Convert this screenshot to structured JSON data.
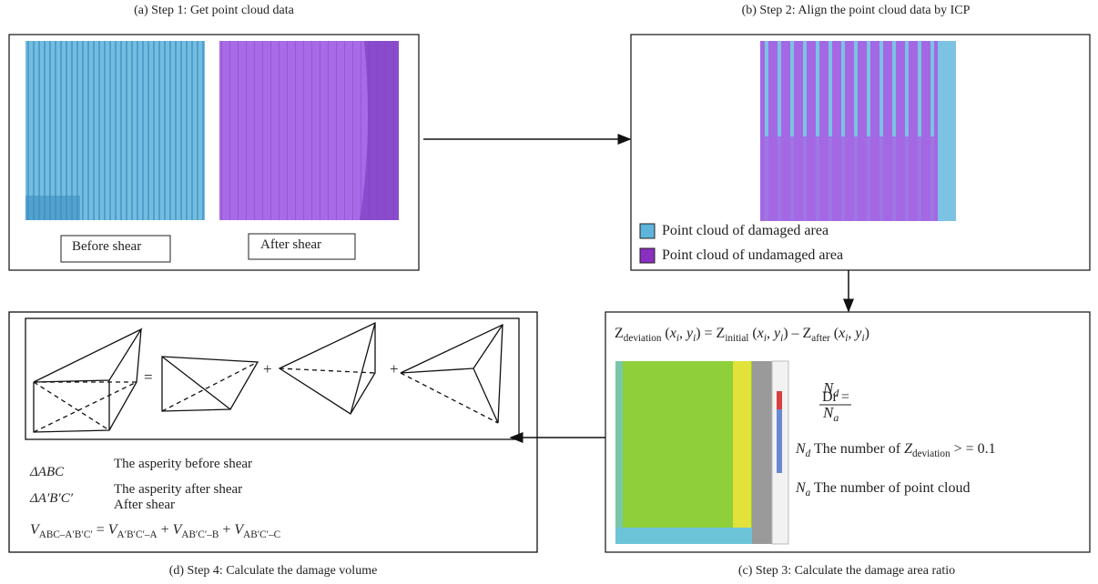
{
  "panel_a": {
    "caption": "(a) Step 1: Get point cloud data",
    "before_label": "Before shear",
    "after_label": "After shear"
  },
  "panel_b": {
    "caption": "(b) Step 2: Align the point cloud data by ICP",
    "legend": [
      "Point cloud of damaged area",
      "Point cloud of undamaged area"
    ]
  },
  "panel_c": {
    "caption": "(c) Step 3: Calculate the damage area ratio",
    "deviation_formula": [
      "Z",
      "deviation",
      " (",
      "x",
      "i",
      ", ",
      "y",
      "i",
      ") = Z",
      "initial",
      " (",
      "x",
      "i",
      ", ",
      "y",
      "i",
      ") – Z",
      "after",
      " (",
      "x",
      "i",
      ", ",
      "y",
      "i",
      ")"
    ],
    "dr_lhs": "Dr =",
    "dr_numerator": [
      "N",
      "d"
    ],
    "dr_denominator": [
      "N",
      "a"
    ],
    "nd_text": [
      "N",
      "d",
      " The number of ",
      "Z",
      "deviation",
      " > = 0.1"
    ],
    "na_text": [
      "N",
      "a",
      " The number of point cloud"
    ]
  },
  "panel_d": {
    "caption": "(d) Step 4: Calculate the damage volume",
    "operators": [
      "=",
      "+",
      "+"
    ],
    "rows": [
      {
        "symbol": "ΔABC",
        "text": [
          "The asperity before shear"
        ]
      },
      {
        "symbol": "ΔA′B′C′",
        "text": [
          "The asperity after shear",
          "After shear"
        ]
      }
    ],
    "volume_formula": [
      "V",
      "ABC–A′B′C′",
      " = ",
      "V",
      "A′B′C′–A",
      " + ",
      "V",
      "AB′C′–B",
      " + ",
      "V",
      "AB′C′–C"
    ]
  }
}
